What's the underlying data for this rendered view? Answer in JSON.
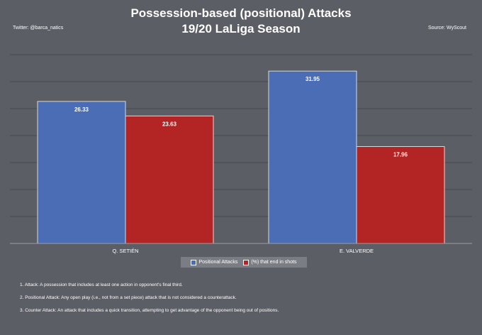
{
  "header": {
    "title_line1": "Possession-based (positional) Attacks",
    "title_line2": "19/20 LaLiga Season",
    "credit_left": "Twitter: @barca_natics",
    "credit_right": "Source: WyScout"
  },
  "colors": {
    "background": "#5c5e66",
    "series_blue": "#4a6db5",
    "series_red": "#b32424",
    "gridline": "#46484f"
  },
  "chart_data": {
    "type": "bar",
    "title": "Possession-based (positional) Attacks — 19/20 LaLiga Season",
    "categories": [
      "Q. SETIÉN",
      "E. VALVERDE"
    ],
    "series": [
      {
        "name": "Positional Attacks",
        "values": [
          26.33,
          31.95
        ],
        "labels": [
          "26.33",
          "31.95"
        ]
      },
      {
        "name": "(%) that end in shots",
        "values": [
          23.63,
          17.96
        ],
        "labels": [
          "23.63",
          "17.96"
        ]
      }
    ],
    "ylim": [
      0,
      35
    ],
    "grid": true,
    "legend": "bottom-center"
  },
  "notes": [
    "1. Attack: A possession that includes at least one action in opponent's final third.",
    "2. Positional Attack: Any open play (i.e., not from a set piece) attack that is not considered a counterattack.",
    "3. Counter Attack: An attack that includes a quick transition, attempting to get advantage of the opponent being out of positions."
  ]
}
